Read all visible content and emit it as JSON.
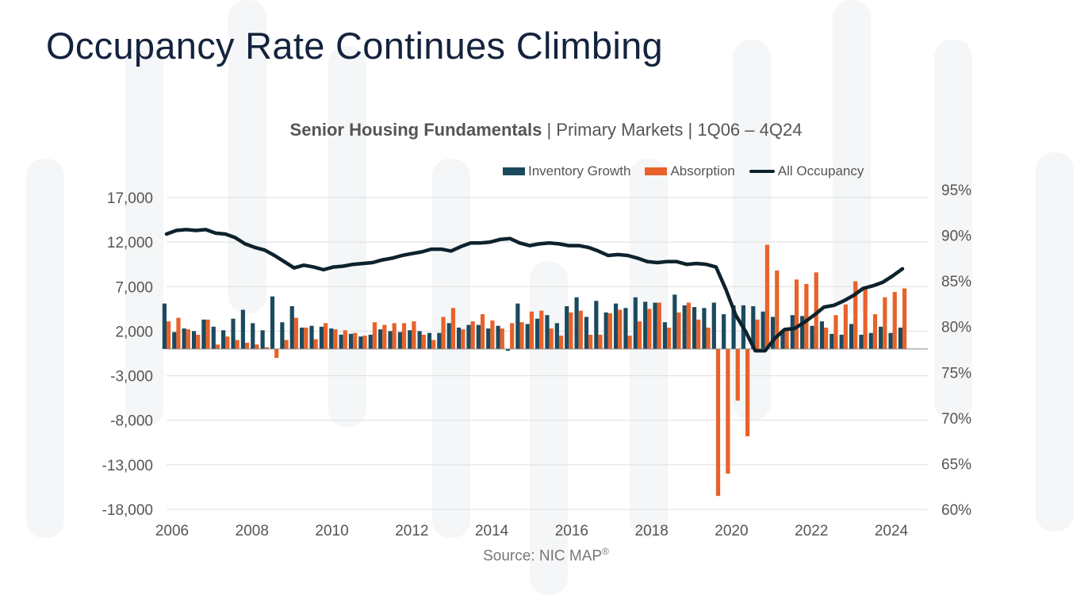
{
  "page": {
    "title": "Occupancy Rate Continues Climbing"
  },
  "chart_data": {
    "type": "bar",
    "title_bold": "Senior Housing Fundamentals",
    "title_rest": " | Primary Markets | 1Q06 – 4Q24",
    "source_text": "Source: NIC MAP",
    "source_mark": "®",
    "x_ticks": [
      "2006",
      "2008",
      "2010",
      "2012",
      "2014",
      "2016",
      "2018",
      "2020",
      "2022",
      "2024"
    ],
    "y_left_ticks": [
      "17,000",
      "12,000",
      "7,000",
      "2,000",
      "-3,000",
      "-8,000",
      "-13,000",
      "-18,000"
    ],
    "y_right_ticks": [
      "95%",
      "90%",
      "85%",
      "80%",
      "75%",
      "70%",
      "65%",
      "60%"
    ],
    "y_left_range": [
      -18000,
      17000
    ],
    "y_right_range": [
      0.6,
      0.95
    ],
    "bar_baseline": 0,
    "legend_position": "top-right",
    "grid": true,
    "quarters_start": "1Q06",
    "quarters_end": "4Q24",
    "series": [
      {
        "name": "Inventory Growth",
        "type": "bar",
        "axis": "left",
        "color": "#1b4a5e",
        "values": [
          5100,
          1900,
          2300,
          2000,
          3300,
          2500,
          2100,
          3400,
          4400,
          2900,
          2100,
          5900,
          3000,
          4800,
          2400,
          2600,
          2500,
          2300,
          1600,
          1700,
          1400,
          1600,
          2200,
          2000,
          1900,
          2100,
          2000,
          1800,
          1800,
          2900,
          2400,
          2700,
          2700,
          2300,
          2600,
          -200,
          5100,
          2800,
          3400,
          3800,
          2900,
          4800,
          5800,
          3600,
          5400,
          4100,
          5100,
          4600,
          5800,
          5300,
          5200,
          3000,
          6100,
          4900,
          4700,
          4600,
          5200,
          3900,
          4900,
          4900,
          4800,
          4200,
          3600,
          2100,
          3800,
          3700,
          2600,
          3100,
          1700,
          1600,
          2800,
          1600,
          1800,
          2500,
          1800,
          2400
        ]
      },
      {
        "name": "Absorption",
        "type": "bar",
        "axis": "left",
        "color": "#e8622a",
        "values": [
          3100,
          3500,
          2200,
          1600,
          3300,
          500,
          1400,
          1000,
          700,
          500,
          200,
          -1000,
          1000,
          3500,
          2400,
          1100,
          2900,
          2200,
          2100,
          1800,
          1500,
          3000,
          2700,
          2900,
          2900,
          3100,
          1600,
          1000,
          3600,
          4600,
          2200,
          3100,
          3900,
          3200,
          2300,
          2900,
          3000,
          4200,
          4300,
          2300,
          1500,
          4100,
          4300,
          1600,
          1600,
          4000,
          4400,
          1500,
          3100,
          4500,
          5200,
          2400,
          4100,
          5200,
          3300,
          2400,
          -16500,
          -14000,
          -5800,
          -9800,
          3300,
          11700,
          8800,
          2100,
          7800,
          7300,
          8600,
          2400,
          3800,
          5000,
          7600,
          6800,
          3900,
          5800,
          6400,
          6800
        ]
      },
      {
        "name": "All Occupancy",
        "type": "line",
        "axis": "right",
        "color": "#0d222c",
        "values": [
          0.909,
          0.913,
          0.914,
          0.913,
          0.914,
          0.91,
          0.909,
          0.905,
          0.898,
          0.894,
          0.891,
          0.885,
          0.878,
          0.871,
          0.874,
          0.872,
          0.869,
          0.872,
          0.873,
          0.875,
          0.876,
          0.877,
          0.88,
          0.882,
          0.885,
          0.887,
          0.889,
          0.892,
          0.892,
          0.89,
          0.895,
          0.899,
          0.899,
          0.9,
          0.903,
          0.904,
          0.899,
          0.896,
          0.898,
          0.899,
          0.898,
          0.896,
          0.896,
          0.894,
          0.89,
          0.885,
          0.886,
          0.885,
          0.882,
          0.878,
          0.877,
          0.878,
          0.878,
          0.875,
          0.876,
          0.875,
          0.872,
          0.847,
          0.818,
          0.8,
          0.778,
          0.778,
          0.792,
          0.802,
          0.803,
          0.81,
          0.818,
          0.827,
          0.829,
          0.834,
          0.84,
          0.848,
          0.851,
          0.855,
          0.862,
          0.87
        ]
      }
    ]
  }
}
